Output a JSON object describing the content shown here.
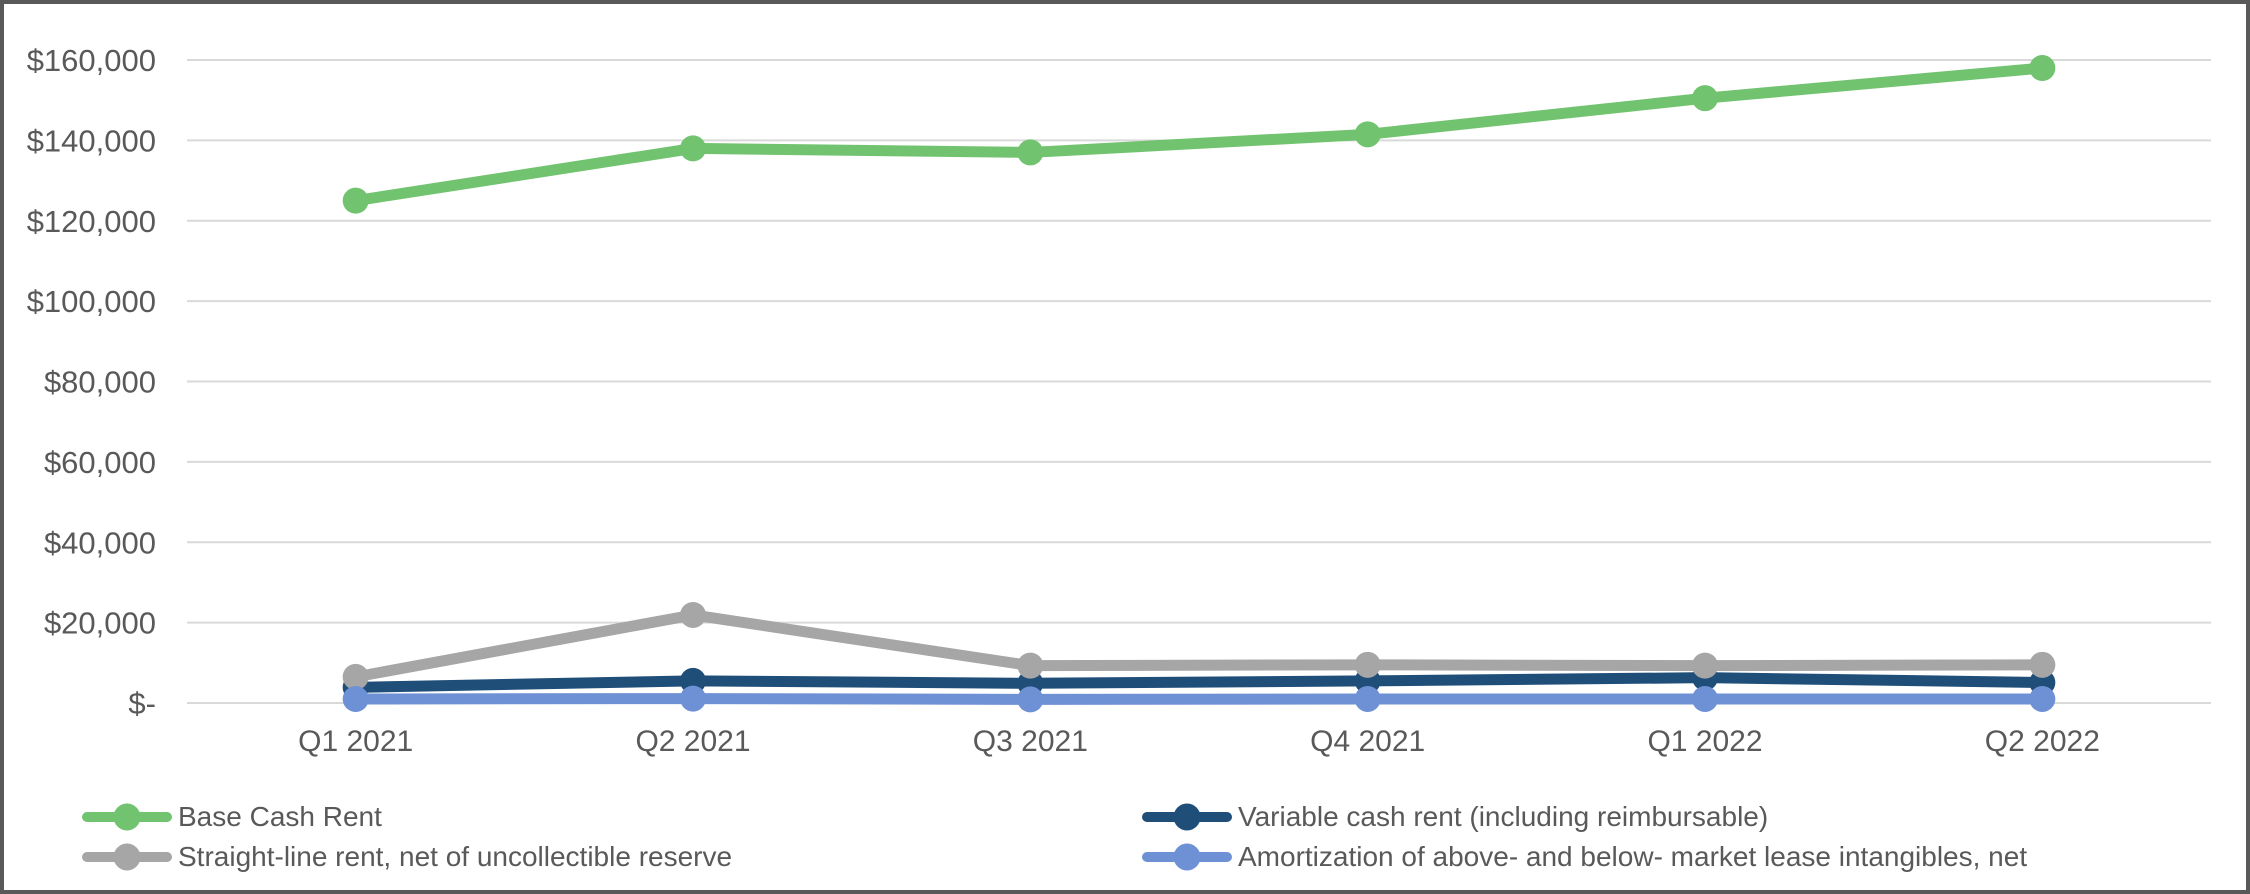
{
  "chart_data": {
    "type": "line",
    "title": "",
    "xlabel": "",
    "ylabel": "",
    "categories": [
      "Q1 2021",
      "Q2 2021",
      "Q3 2021",
      "Q4 2021",
      "Q1 2022",
      "Q2 2022"
    ],
    "series": [
      {
        "name": "Base Cash Rent",
        "color": "#71C36F",
        "values": [
          125000,
          138000,
          137000,
          141500,
          150500,
          158000
        ]
      },
      {
        "name": "Variable cash rent (including reimbursable)",
        "color": "#1F4E79",
        "values": [
          3900,
          5500,
          4900,
          5500,
          6300,
          5100
        ]
      },
      {
        "name": "Straight-line rent, net of uncollectible reserve",
        "color": "#A6A6A6",
        "values": [
          6500,
          21900,
          9300,
          9500,
          9300,
          9500
        ]
      },
      {
        "name": "Amortization of above- and below- market lease intangibles, net",
        "color": "#6E90D4",
        "values": [
          1000,
          1100,
          900,
          1000,
          1000,
          1000
        ]
      }
    ],
    "y_axis": {
      "min": 0,
      "max": 160000,
      "tick_interval": 20000,
      "tick_labels": [
        "$-",
        "$20,000",
        "$40,000",
        "$60,000",
        "$80,000",
        "$100,000",
        "$120,000",
        "$140,000",
        "$160,000"
      ]
    },
    "ylim": [
      0,
      160000
    ],
    "grid": true,
    "legend_position": "bottom"
  },
  "styles": {
    "background": "#FFFFFF",
    "frame_border": "#595959",
    "gridline": "#D9D9D9",
    "text": "#595959"
  }
}
